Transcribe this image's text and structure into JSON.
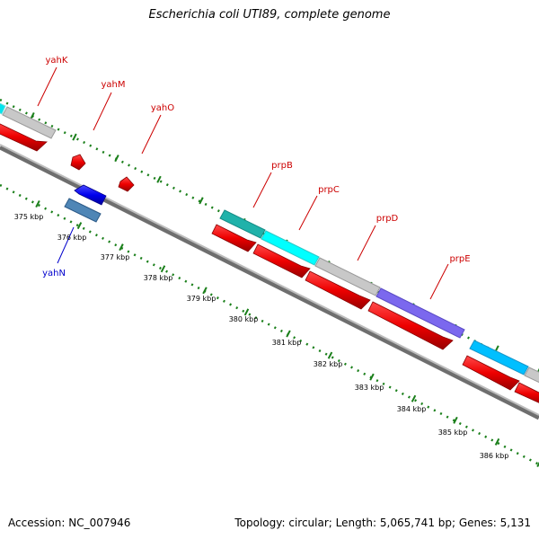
{
  "title": "Escherichia coli UTI89, complete genome",
  "footer": {
    "accession": "Accession: NC_007946",
    "topology": "Topology: circular; Length: 5,065,741 bp; Genes: 5,131"
  },
  "colors": {
    "backbone": "#909090",
    "ticks": "#1a7f1a",
    "cds_forward": "#ff0000",
    "cds_reverse": "#0000ff",
    "label_forward": "#cc0000",
    "label_reverse": "#0000cc"
  },
  "genes": [
    {
      "name": "yahK",
      "strand": "forward",
      "class_color": "#c8c8c8"
    },
    {
      "name": "yahM",
      "strand": "forward",
      "class_color": null
    },
    {
      "name": "yahO",
      "strand": "forward",
      "class_color": null
    },
    {
      "name": "yahN",
      "strand": "reverse",
      "class_color": "#4f86b6"
    },
    {
      "name": "prpB",
      "strand": "forward",
      "class_color": "#20b2aa"
    },
    {
      "name": "prpC",
      "strand": "forward",
      "class_color": "#00ffff"
    },
    {
      "name": "prpD",
      "strand": "forward",
      "class_color": "#c8c8c8"
    },
    {
      "name": "prpE",
      "strand": "forward",
      "class_color": "#7b68ee"
    }
  ],
  "scale_labels": [
    "375 kbp",
    "376 kbp",
    "377 kbp",
    "378 kbp",
    "379 kbp",
    "380 kbp",
    "381 kbp",
    "382 kbp",
    "383 kbp",
    "384 kbp",
    "385 kbp",
    "386 kbp"
  ]
}
